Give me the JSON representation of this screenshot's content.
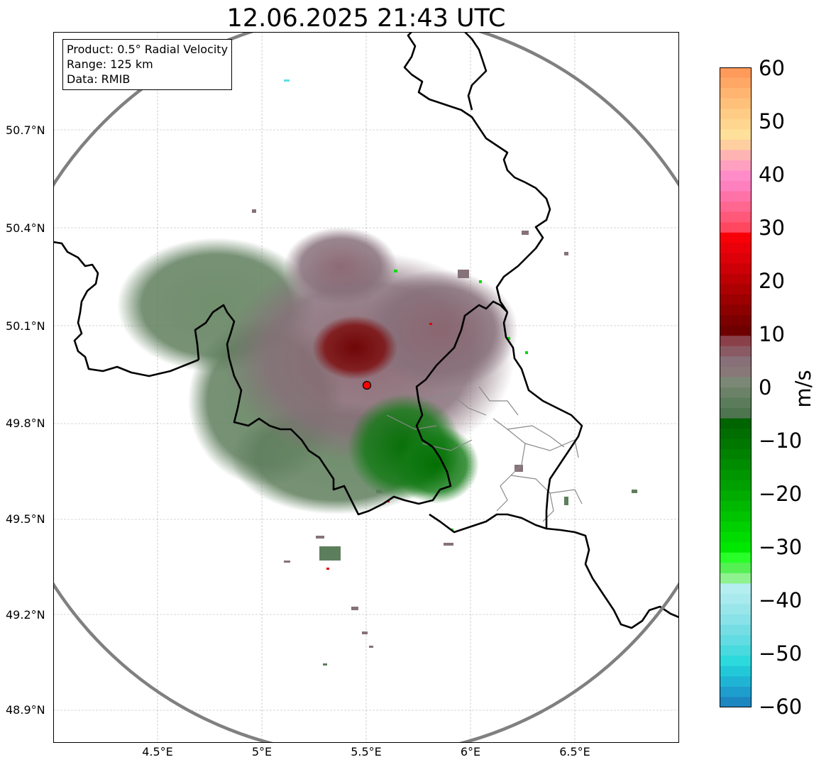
{
  "title": "12.06.2025 21:43 UTC",
  "info": {
    "product": "Product: 0.5° Radial Velocity",
    "range": "Range: 125 km",
    "data": "Data: RMIB"
  },
  "lat_ticks": [
    "50.7°N",
    "50.4°N",
    "50.1°N",
    "49.8°N",
    "49.5°N",
    "49.2°N",
    "48.9°N"
  ],
  "lon_ticks": [
    "4.5°E",
    "5°E",
    "5.5°E",
    "6°E",
    "6.5°E"
  ],
  "radar_site": {
    "lon": 5.505,
    "lat": 49.914
  },
  "colorbar": {
    "unit": "m/s",
    "min": -60,
    "max": 60,
    "ticks": [
      "60",
      "50",
      "40",
      "30",
      "20",
      "10",
      "0",
      "−10",
      "−20",
      "−30",
      "−40",
      "−50",
      "−60"
    ],
    "colors_top_to_bottom": [
      "#ff9a5a",
      "#ffa866",
      "#ffb570",
      "#ffc07a",
      "#ffcc85",
      "#ffd68f",
      "#ffe09a",
      "#ffcfa0",
      "#ffb4b4",
      "#ffa0c0",
      "#ff8cc8",
      "#ff80bf",
      "#ff72a8",
      "#ff6690",
      "#ff5878",
      "#ff4860",
      "#f80008",
      "#ea0008",
      "#dc0008",
      "#cc0006",
      "#bc0004",
      "#ac0002",
      "#9c0000",
      "#8c0000",
      "#7c0000",
      "#6e0000",
      "#8a4048",
      "#8a5a64",
      "#887078",
      "#887878",
      "#7c8876",
      "#6c8268",
      "#5a7c5a",
      "#4e7450",
      "#006400",
      "#006e00",
      "#007800",
      "#008200",
      "#008c00",
      "#009600",
      "#00a000",
      "#00ac00",
      "#00b800",
      "#00c400",
      "#00d000",
      "#00dc00",
      "#00e800",
      "#28ff28",
      "#54f054",
      "#8ef28e",
      "#b4eef0",
      "#a8eaee",
      "#98e6ea",
      "#88e2e8",
      "#74dee4",
      "#60dce2",
      "#48dade",
      "#2cdade",
      "#22c8d8",
      "#20b4d4",
      "#1e9ecc",
      "#1c86c0"
    ]
  }
}
